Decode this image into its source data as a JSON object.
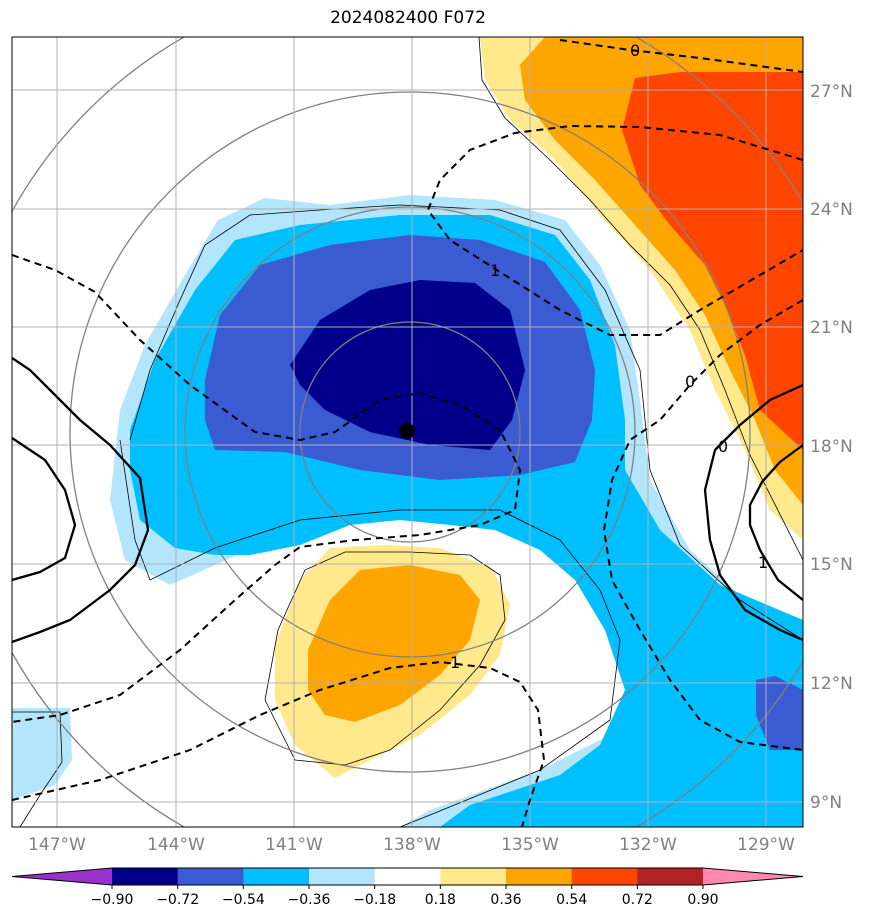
{
  "title": "2024082400 F072",
  "map": {
    "lon_labels": [
      "147°W",
      "144°W",
      "141°W",
      "138°W",
      "135°W",
      "132°W",
      "129°W"
    ],
    "lat_labels": [
      "27°N",
      "24°N",
      "21°N",
      "18°N",
      "15°N",
      "12°N",
      "9°N"
    ],
    "contour_labels": [
      "0",
      "1",
      "0",
      "0",
      "1",
      "1"
    ],
    "center_marker": "storm-center"
  },
  "colorbar": {
    "ticks": [
      "−0.90",
      "−0.72",
      "−0.54",
      "−0.36",
      "−0.18",
      "0.18",
      "0.36",
      "0.54",
      "0.72",
      "0.90"
    ],
    "colors": [
      "#9932cc",
      "#00008b",
      "#3a5bd1",
      "#00bfff",
      "#b3e5fc",
      "#ffffff",
      "#ffe98c",
      "#ffa500",
      "#ff4500",
      "#b22222",
      "#ff88b0"
    ]
  }
}
